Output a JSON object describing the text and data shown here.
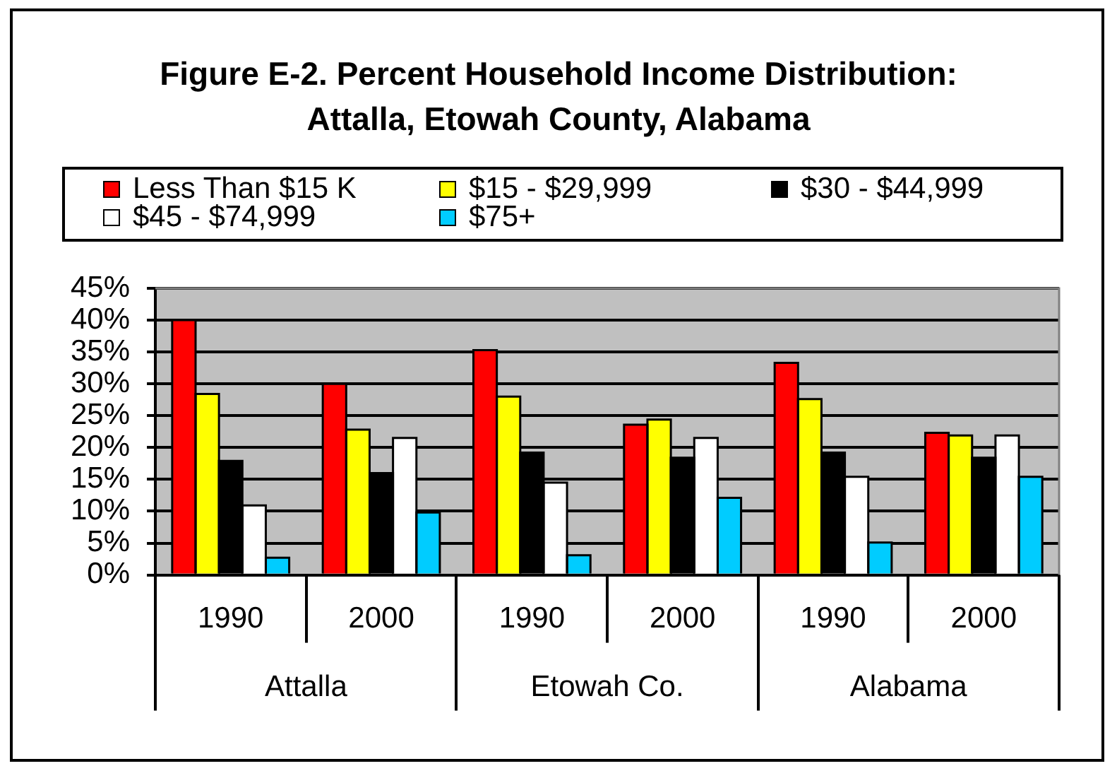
{
  "chart_data": {
    "type": "bar",
    "title": "Figure E-2. Percent Household Income Distribution: Attalla, Etowah County, Alabama",
    "categories": [
      "1990",
      "2000",
      "1990",
      "2000",
      "1990",
      "2000"
    ],
    "series": [
      {
        "name": "Less Than $15 K",
        "color": "#ff0000",
        "values": [
          40.0,
          30.0,
          35.3,
          23.6,
          33.3,
          22.3
        ]
      },
      {
        "name": "$15 - $29,999",
        "color": "#ffff00",
        "values": [
          28.4,
          22.8,
          28.0,
          24.4,
          27.6,
          21.9
        ]
      },
      {
        "name": "$30 - $44,999",
        "color": "#000000",
        "values": [
          17.9,
          16.0,
          19.2,
          18.4,
          19.2,
          18.4
        ]
      },
      {
        "name": "$45 - $74,999",
        "color": "#ffffff",
        "values": [
          10.9,
          21.5,
          14.5,
          21.5,
          15.4,
          21.9
        ]
      },
      {
        "name": "$75+",
        "color": "#00ccff",
        "values": [
          2.7,
          9.8,
          3.1,
          12.1,
          5.1,
          15.4
        ]
      }
    ],
    "ylim": [
      0,
      45
    ],
    "yticks": [
      {
        "value": 0,
        "label": "0%"
      },
      {
        "value": 5,
        "label": "5%"
      },
      {
        "value": 10,
        "label": "10%"
      },
      {
        "value": 15,
        "label": "15%"
      },
      {
        "value": 20,
        "label": "20%"
      },
      {
        "value": 25,
        "label": "25%"
      },
      {
        "value": 30,
        "label": "30%"
      },
      {
        "value": 35,
        "label": "35%"
      },
      {
        "value": 40,
        "label": "40%"
      },
      {
        "value": 45,
        "label": "45%"
      }
    ],
    "grid": "y",
    "legend": "top",
    "annotations": [
      "Attalla",
      "Etowah Co.",
      "Alabama"
    ]
  }
}
